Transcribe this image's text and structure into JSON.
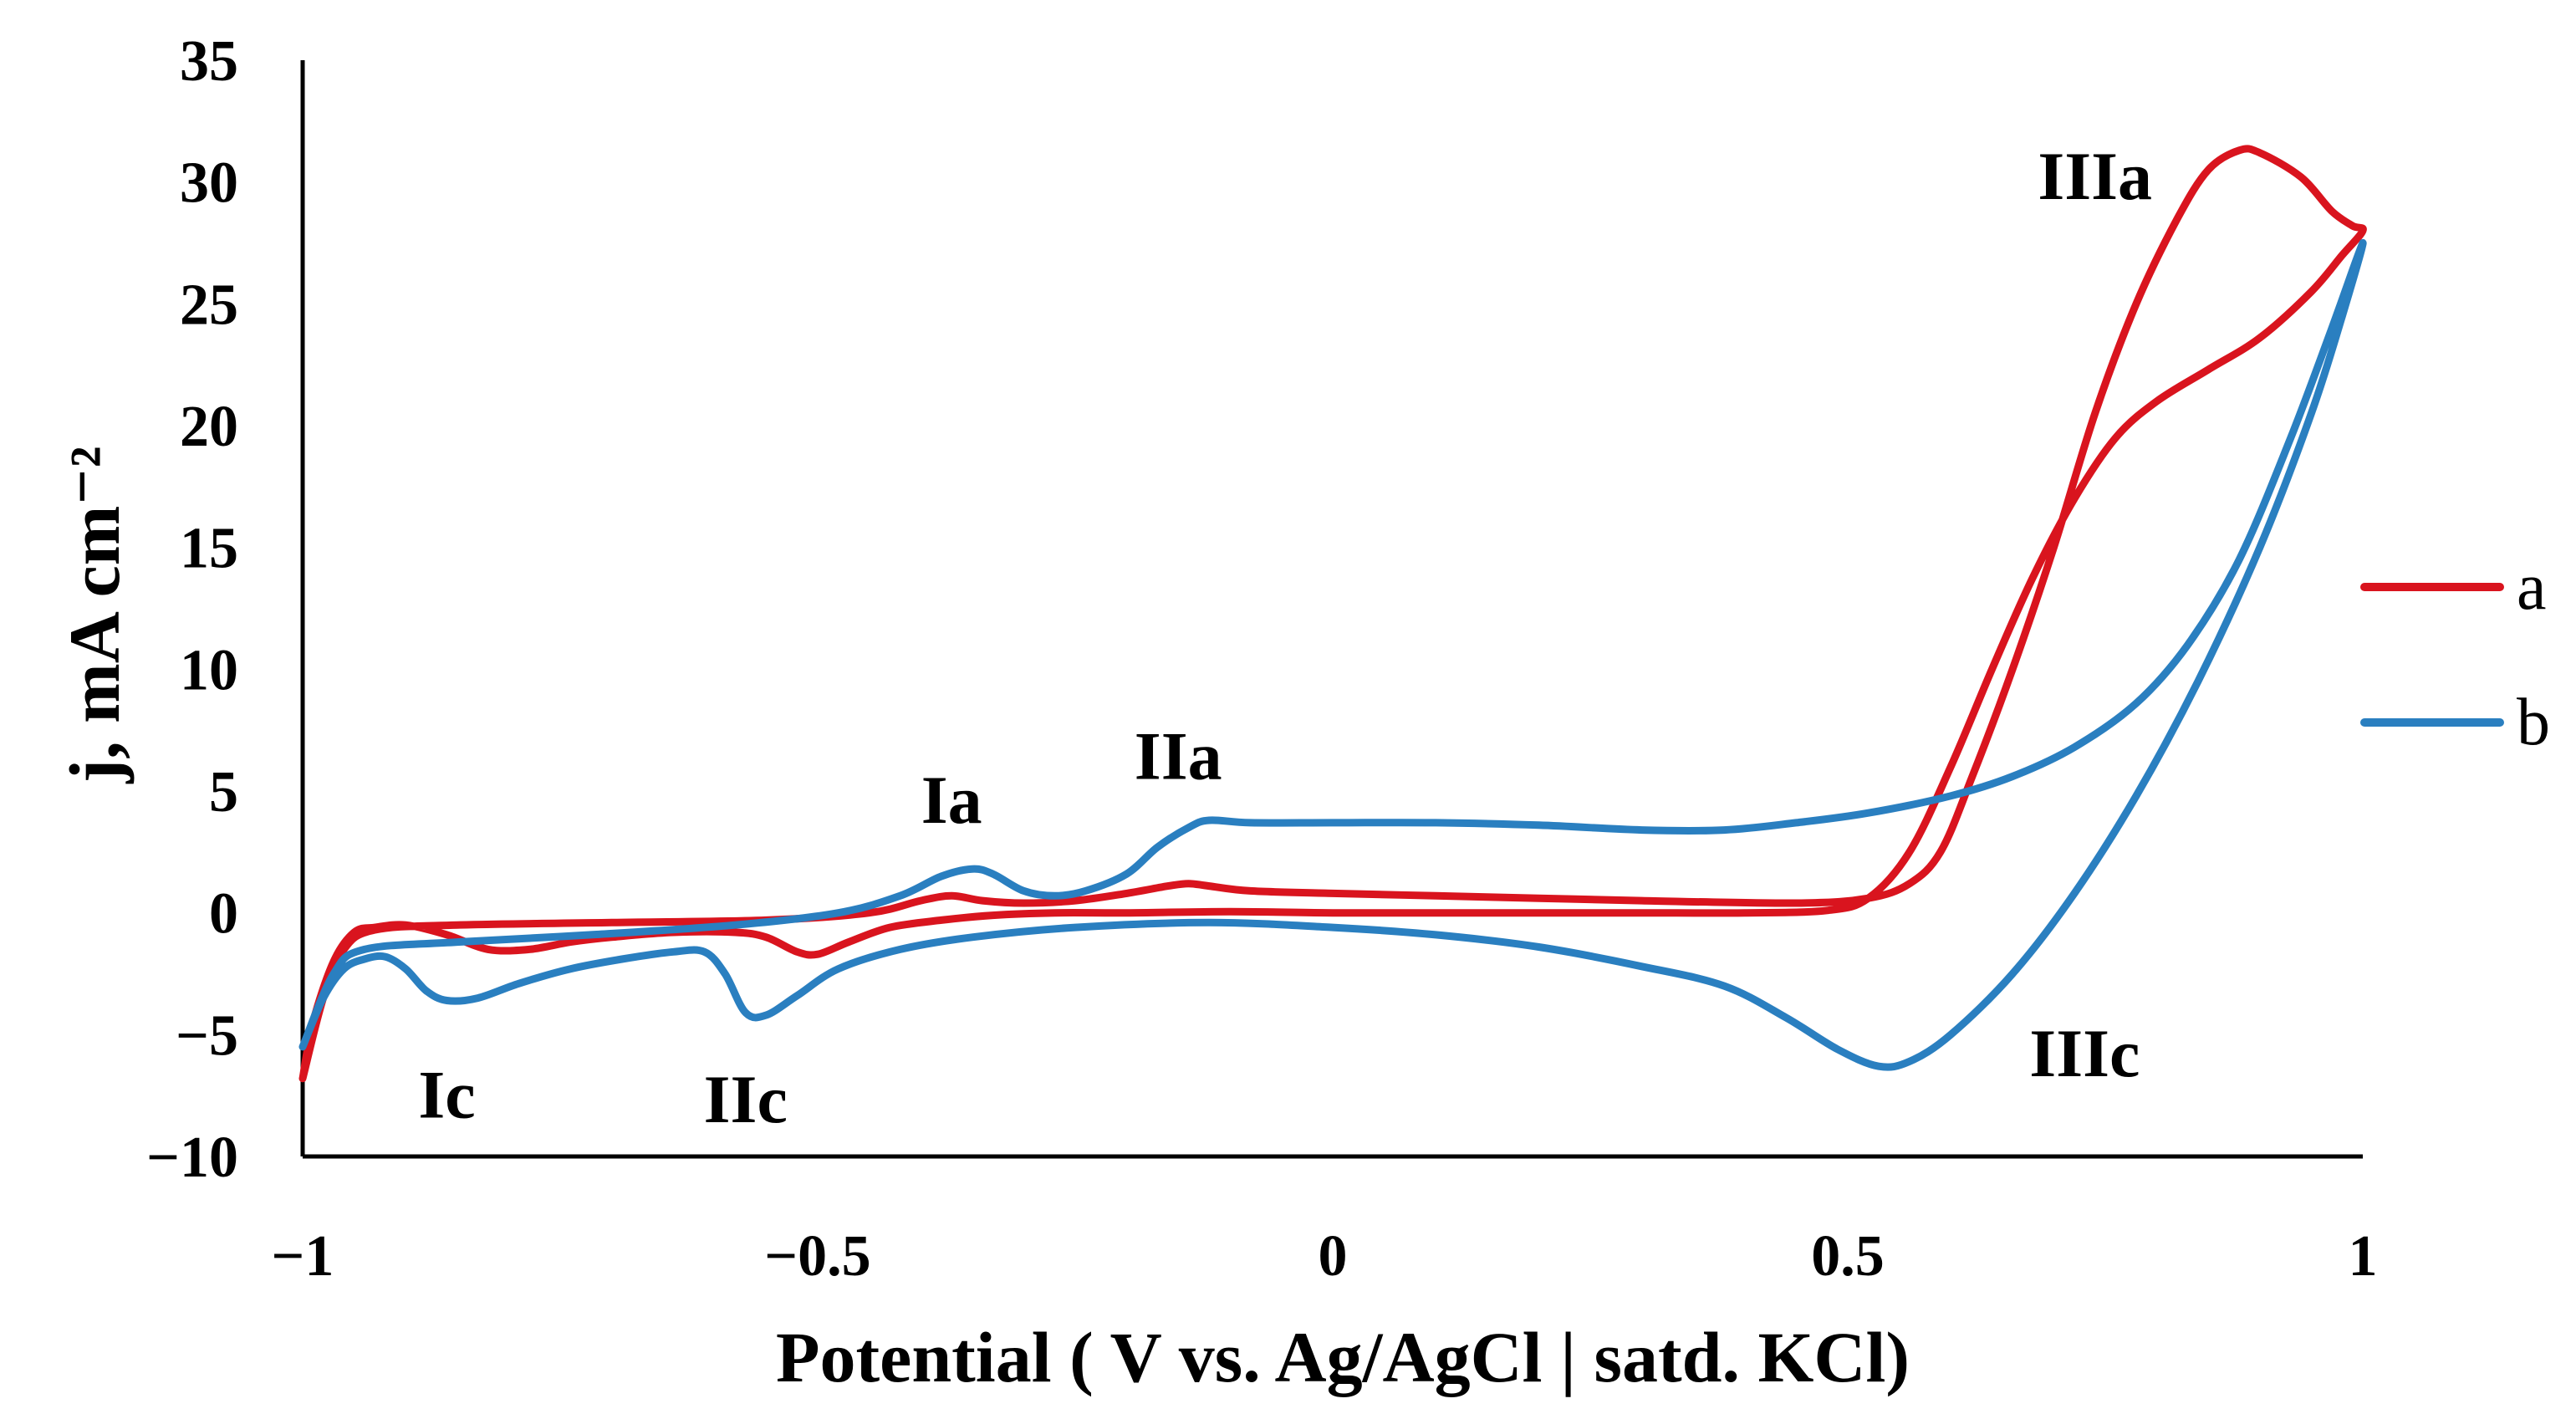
{
  "chart_data": {
    "type": "line",
    "title": "",
    "xlabel": "Potential ( V vs. Ag/AgCl | satd. KCl)",
    "ylabel": "j, mA cm⁻²",
    "xlim": [
      -1,
      1
    ],
    "ylim": [
      -10,
      35
    ],
    "grid": false,
    "legend_position": "right",
    "x_ticks": [
      {
        "value": -1,
        "label": "−1"
      },
      {
        "value": -0.5,
        "label": "−0.5"
      },
      {
        "value": 0,
        "label": "0"
      },
      {
        "value": 0.5,
        "label": "0.5"
      },
      {
        "value": 1,
        "label": "1"
      }
    ],
    "y_ticks": [
      {
        "value": 35,
        "label": "35"
      },
      {
        "value": 30,
        "label": "30"
      },
      {
        "value": 25,
        "label": "25"
      },
      {
        "value": 20,
        "label": "20"
      },
      {
        "value": 15,
        "label": "15"
      },
      {
        "value": 10,
        "label": "10"
      },
      {
        "value": 5,
        "label": "5"
      },
      {
        "value": 0,
        "label": "0"
      },
      {
        "value": -5,
        "label": "−5"
      },
      {
        "value": -10,
        "label": "−10"
      }
    ],
    "annotations": [
      {
        "text": "IIIa",
        "x": 0.74,
        "y": 29.3
      },
      {
        "text": "IIa",
        "x": -0.15,
        "y": 5.5
      },
      {
        "text": "Ia",
        "x": -0.37,
        "y": 3.7
      },
      {
        "text": "Ic",
        "x": -0.86,
        "y": -8.4
      },
      {
        "text": "IIc",
        "x": -0.57,
        "y": -8.6
      },
      {
        "text": "IIIc",
        "x": 0.73,
        "y": -6.7
      }
    ],
    "series": [
      {
        "name": "a",
        "color": "#d9141e",
        "points": [
          [
            -1.0,
            -6.8
          ],
          [
            -0.99,
            -4.5
          ],
          [
            -0.97,
            -2.0
          ],
          [
            -0.95,
            -0.8
          ],
          [
            -0.93,
            -0.6
          ],
          [
            -0.9,
            -0.5
          ],
          [
            -0.86,
            -0.9
          ],
          [
            -0.82,
            -1.5
          ],
          [
            -0.78,
            -1.5
          ],
          [
            -0.74,
            -1.2
          ],
          [
            -0.7,
            -1.0
          ],
          [
            -0.64,
            -0.8
          ],
          [
            -0.58,
            -0.8
          ],
          [
            -0.55,
            -1.0
          ],
          [
            -0.52,
            -1.6
          ],
          [
            -0.5,
            -1.7
          ],
          [
            -0.47,
            -1.2
          ],
          [
            -0.43,
            -0.6
          ],
          [
            -0.38,
            -0.3
          ],
          [
            -0.33,
            -0.1
          ],
          [
            -0.27,
            0.0
          ],
          [
            -0.2,
            0.0
          ],
          [
            -0.1,
            0.05
          ],
          [
            0.0,
            0.0
          ],
          [
            0.1,
            0.0
          ],
          [
            0.2,
            0.0
          ],
          [
            0.3,
            0.0
          ],
          [
            0.4,
            0.0
          ],
          [
            0.48,
            0.1
          ],
          [
            0.52,
            0.6
          ],
          [
            0.56,
            2.5
          ],
          [
            0.6,
            6.0
          ],
          [
            0.64,
            10.0
          ],
          [
            0.68,
            13.8
          ],
          [
            0.72,
            17.0
          ],
          [
            0.76,
            19.5
          ],
          [
            0.8,
            21.0
          ],
          [
            0.85,
            22.3
          ],
          [
            0.9,
            23.6
          ],
          [
            0.95,
            25.5
          ],
          [
            0.98,
            27.0
          ],
          [
            1.0,
            28.0
          ],
          [
            0.99,
            28.2
          ],
          [
            0.97,
            28.8
          ],
          [
            0.94,
            30.2
          ],
          [
            0.9,
            31.2
          ],
          [
            0.88,
            31.3
          ],
          [
            0.85,
            30.5
          ],
          [
            0.82,
            28.5
          ],
          [
            0.78,
            25.0
          ],
          [
            0.74,
            20.5
          ],
          [
            0.7,
            15.0
          ],
          [
            0.66,
            10.0
          ],
          [
            0.62,
            5.5
          ],
          [
            0.59,
            2.5
          ],
          [
            0.56,
            1.2
          ],
          [
            0.52,
            0.6
          ],
          [
            0.45,
            0.4
          ],
          [
            0.3,
            0.5
          ],
          [
            0.2,
            0.6
          ],
          [
            0.1,
            0.7
          ],
          [
            0.0,
            0.8
          ],
          [
            -0.08,
            0.9
          ],
          [
            -0.12,
            1.1
          ],
          [
            -0.14,
            1.2
          ],
          [
            -0.16,
            1.1
          ],
          [
            -0.2,
            0.8
          ],
          [
            -0.25,
            0.5
          ],
          [
            -0.3,
            0.4
          ],
          [
            -0.34,
            0.5
          ],
          [
            -0.37,
            0.7
          ],
          [
            -0.4,
            0.5
          ],
          [
            -0.45,
            0.0
          ],
          [
            -0.55,
            -0.3
          ],
          [
            -0.7,
            -0.4
          ],
          [
            -0.85,
            -0.5
          ],
          [
            -0.93,
            -0.7
          ],
          [
            -0.96,
            -1.5
          ],
          [
            -0.98,
            -3.5
          ],
          [
            -1.0,
            -6.8
          ]
        ]
      },
      {
        "name": "b",
        "color": "#2a7fc0",
        "points": [
          [
            -1.0,
            -5.5
          ],
          [
            -0.98,
            -3.5
          ],
          [
            -0.96,
            -2.3
          ],
          [
            -0.94,
            -1.9
          ],
          [
            -0.92,
            -1.8
          ],
          [
            -0.9,
            -2.3
          ],
          [
            -0.88,
            -3.2
          ],
          [
            -0.86,
            -3.6
          ],
          [
            -0.83,
            -3.5
          ],
          [
            -0.79,
            -2.9
          ],
          [
            -0.74,
            -2.3
          ],
          [
            -0.69,
            -1.9
          ],
          [
            -0.64,
            -1.6
          ],
          [
            -0.61,
            -1.6
          ],
          [
            -0.59,
            -2.5
          ],
          [
            -0.57,
            -4.1
          ],
          [
            -0.55,
            -4.2
          ],
          [
            -0.52,
            -3.4
          ],
          [
            -0.48,
            -2.3
          ],
          [
            -0.42,
            -1.5
          ],
          [
            -0.35,
            -1.0
          ],
          [
            -0.25,
            -0.6
          ],
          [
            -0.12,
            -0.4
          ],
          [
            0.0,
            -0.6
          ],
          [
            0.1,
            -0.9
          ],
          [
            0.2,
            -1.4
          ],
          [
            0.3,
            -2.2
          ],
          [
            0.38,
            -3.0
          ],
          [
            0.44,
            -4.3
          ],
          [
            0.49,
            -5.6
          ],
          [
            0.53,
            -6.3
          ],
          [
            0.56,
            -6.1
          ],
          [
            0.6,
            -5.0
          ],
          [
            0.66,
            -2.5
          ],
          [
            0.72,
            0.8
          ],
          [
            0.78,
            4.8
          ],
          [
            0.84,
            9.5
          ],
          [
            0.9,
            15.0
          ],
          [
            0.95,
            20.5
          ],
          [
            0.98,
            24.5
          ],
          [
            1.0,
            27.5
          ],
          [
            0.97,
            24.0
          ],
          [
            0.93,
            19.5
          ],
          [
            0.88,
            14.5
          ],
          [
            0.83,
            11.0
          ],
          [
            0.78,
            8.6
          ],
          [
            0.72,
            6.8
          ],
          [
            0.66,
            5.6
          ],
          [
            0.6,
            4.8
          ],
          [
            0.52,
            4.1
          ],
          [
            0.45,
            3.7
          ],
          [
            0.38,
            3.4
          ],
          [
            0.3,
            3.4
          ],
          [
            0.2,
            3.6
          ],
          [
            0.1,
            3.7
          ],
          [
            0.0,
            3.7
          ],
          [
            -0.08,
            3.7
          ],
          [
            -0.12,
            3.8
          ],
          [
            -0.14,
            3.5
          ],
          [
            -0.17,
            2.7
          ],
          [
            -0.2,
            1.6
          ],
          [
            -0.24,
            0.9
          ],
          [
            -0.27,
            0.7
          ],
          [
            -0.3,
            0.9
          ],
          [
            -0.33,
            1.6
          ],
          [
            -0.35,
            1.8
          ],
          [
            -0.38,
            1.5
          ],
          [
            -0.42,
            0.7
          ],
          [
            -0.48,
            0.0
          ],
          [
            -0.58,
            -0.5
          ],
          [
            -0.72,
            -0.9
          ],
          [
            -0.85,
            -1.2
          ],
          [
            -0.94,
            -1.5
          ],
          [
            -0.97,
            -2.5
          ],
          [
            -1.0,
            -5.5
          ]
        ]
      }
    ]
  }
}
